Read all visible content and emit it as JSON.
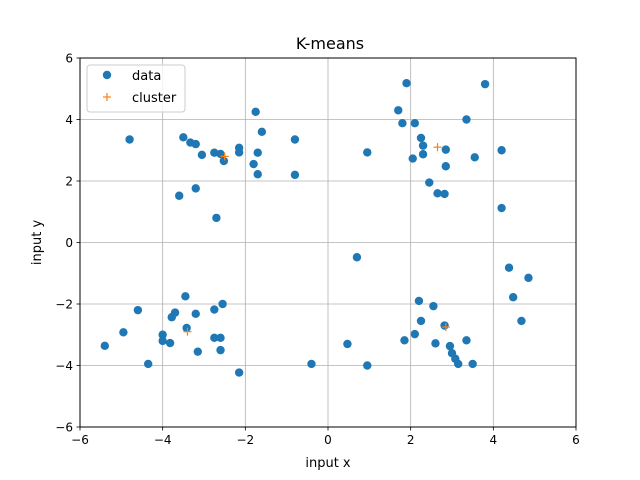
{
  "chart_data": {
    "type": "scatter",
    "title": "K-means",
    "xlabel": "input x",
    "ylabel": "input y",
    "xlim": [
      -6,
      6
    ],
    "ylim": [
      -6,
      6
    ],
    "x_ticks": [
      "−6",
      "−4",
      "−2",
      "0",
      "2",
      "4",
      "6"
    ],
    "y_ticks": [
      "−6",
      "−4",
      "−2",
      "0",
      "2",
      "4",
      "6"
    ],
    "grid": true,
    "legend_position": "upper-left",
    "series": [
      {
        "name": "data",
        "marker": "circle",
        "color": "#1f77b4",
        "points": [
          [
            -4.8,
            3.35
          ],
          [
            -3.5,
            3.42
          ],
          [
            -3.33,
            3.25
          ],
          [
            -3.2,
            3.2
          ],
          [
            -3.05,
            2.85
          ],
          [
            -2.75,
            2.92
          ],
          [
            -2.6,
            2.88
          ],
          [
            -2.52,
            2.65
          ],
          [
            -2.15,
            3.08
          ],
          [
            -2.15,
            2.93
          ],
          [
            -1.75,
            4.25
          ],
          [
            -1.6,
            3.6
          ],
          [
            -1.7,
            2.92
          ],
          [
            -1.8,
            2.55
          ],
          [
            -1.7,
            2.22
          ],
          [
            -0.8,
            3.35
          ],
          [
            -0.8,
            2.2
          ],
          [
            -3.2,
            1.76
          ],
          [
            -3.6,
            1.52
          ],
          [
            -2.7,
            0.8
          ],
          [
            1.9,
            5.18
          ],
          [
            3.8,
            5.15
          ],
          [
            1.7,
            4.3
          ],
          [
            1.8,
            3.88
          ],
          [
            2.1,
            3.88
          ],
          [
            3.35,
            4.0
          ],
          [
            2.25,
            3.4
          ],
          [
            2.3,
            3.15
          ],
          [
            2.85,
            3.02
          ],
          [
            4.2,
            3.0
          ],
          [
            0.95,
            2.93
          ],
          [
            2.05,
            2.73
          ],
          [
            2.3,
            2.87
          ],
          [
            3.55,
            2.77
          ],
          [
            2.85,
            2.48
          ],
          [
            2.45,
            1.95
          ],
          [
            2.65,
            1.6
          ],
          [
            2.82,
            1.58
          ],
          [
            4.2,
            1.12
          ],
          [
            0.7,
            -0.48
          ],
          [
            4.38,
            -0.82
          ],
          [
            4.85,
            -1.15
          ],
          [
            4.48,
            -1.78
          ],
          [
            4.68,
            -2.55
          ],
          [
            -4.6,
            -2.2
          ],
          [
            -3.45,
            -1.75
          ],
          [
            -2.55,
            -2.0
          ],
          [
            -2.75,
            -2.18
          ],
          [
            -3.7,
            -2.28
          ],
          [
            -3.2,
            -2.32
          ],
          [
            -3.78,
            -2.43
          ],
          [
            -3.42,
            -2.78
          ],
          [
            -4.95,
            -2.92
          ],
          [
            -4.0,
            -3.0
          ],
          [
            -2.75,
            -3.1
          ],
          [
            -2.6,
            -3.1
          ],
          [
            -4.0,
            -3.2
          ],
          [
            -3.82,
            -3.27
          ],
          [
            -5.4,
            -3.36
          ],
          [
            -3.15,
            -3.55
          ],
          [
            -2.6,
            -3.5
          ],
          [
            -4.35,
            -3.95
          ],
          [
            -2.15,
            -4.23
          ],
          [
            -0.4,
            -3.95
          ],
          [
            0.47,
            -3.3
          ],
          [
            0.95,
            -4.0
          ],
          [
            2.2,
            -1.9
          ],
          [
            2.55,
            -2.07
          ],
          [
            2.25,
            -2.55
          ],
          [
            2.82,
            -2.7
          ],
          [
            2.1,
            -2.98
          ],
          [
            1.85,
            -3.18
          ],
          [
            2.6,
            -3.28
          ],
          [
            3.35,
            -3.18
          ],
          [
            2.95,
            -3.37
          ],
          [
            3.0,
            -3.6
          ],
          [
            3.08,
            -3.78
          ],
          [
            3.15,
            -3.95
          ],
          [
            3.5,
            -3.95
          ]
        ]
      },
      {
        "name": "cluster",
        "marker": "plus",
        "color": "#ff7f0e",
        "points": [
          [
            -2.5,
            2.8
          ],
          [
            2.65,
            3.1
          ],
          [
            -3.4,
            -2.9
          ],
          [
            2.85,
            -2.75
          ]
        ]
      }
    ]
  }
}
